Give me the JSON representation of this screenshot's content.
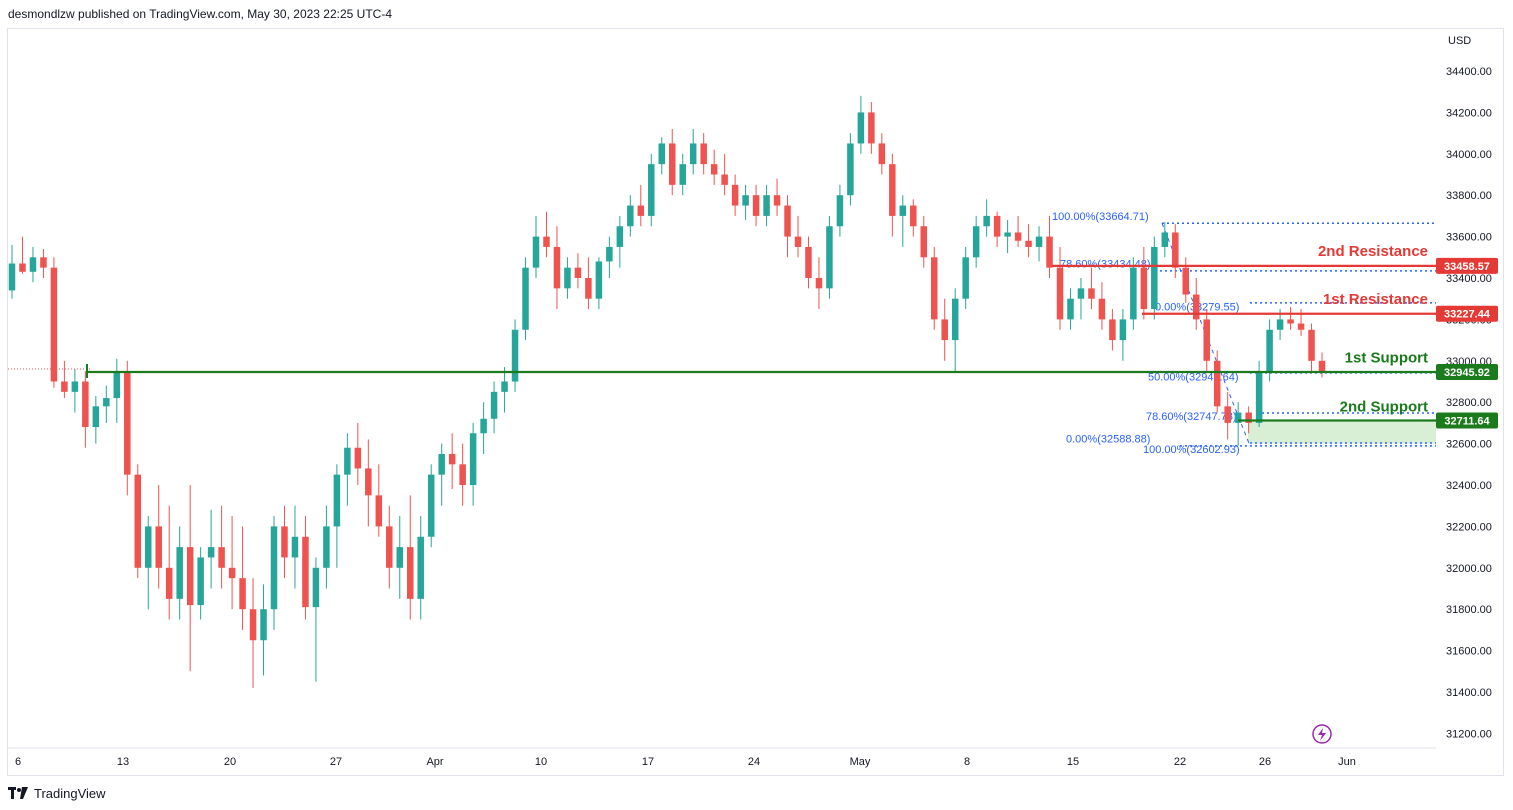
{
  "header": {
    "text": "desmondlzw published on TradingView.com, May 30, 2023 22:25 UTC-4"
  },
  "footer": {
    "brand": "TradingView",
    "logo_icon": "tradingview-logo-icon"
  },
  "chart_data": {
    "type": "candlestick",
    "currency": "USD",
    "colors": {
      "up": "#26a69a",
      "down": "#ef5350",
      "support": "#1b7a1b",
      "resistance": "#e53935",
      "fib": "#2962ff",
      "zone": "#d8efd6"
    },
    "y_ticks": [
      "34400.00",
      "34200.00",
      "34000.00",
      "33800.00",
      "33600.00",
      "33400.00",
      "33200.00",
      "33000.00",
      "32800.00",
      "32600.00",
      "32400.00",
      "32200.00",
      "32000.00",
      "31800.00",
      "31600.00",
      "31400.00",
      "31200.00"
    ],
    "x_ticks": [
      "6",
      "13",
      "20",
      "27",
      "Apr",
      "10",
      "17",
      "24",
      "May",
      "8",
      "15",
      "22",
      "26",
      "Jun"
    ],
    "levels": [
      {
        "label": "2nd Resistance",
        "value": 33458.57,
        "badge": "33458.57",
        "kind": "resistance"
      },
      {
        "label": "1st Resistance",
        "value": 33227.44,
        "badge": "33227.44",
        "kind": "resistance"
      },
      {
        "label": "1st Support",
        "value": 32945.92,
        "badge": "32945.92",
        "kind": "support"
      },
      {
        "label": "2nd Support",
        "value": 32711.64,
        "badge": "32711.64",
        "kind": "support"
      }
    ],
    "fib_labels": [
      "100.00%(33664.71)",
      "78.60%(33434.48)",
      "0.00%(33279.55)",
      "50.00%(32941.64)",
      "78.60%(32747.73)",
      "0.00%(32588.88)",
      "100.00%(32602.93)"
    ],
    "ohlc": [
      [
        33340,
        33560,
        33300,
        33470
      ],
      [
        33470,
        33600,
        33420,
        33430
      ],
      [
        33430,
        33550,
        33380,
        33500
      ],
      [
        33500,
        33540,
        33400,
        33450
      ],
      [
        33450,
        33500,
        32870,
        32900
      ],
      [
        32900,
        33000,
        32820,
        32850
      ],
      [
        32850,
        32960,
        32750,
        32900
      ],
      [
        32900,
        32950,
        32580,
        32680
      ],
      [
        32680,
        32830,
        32600,
        32780
      ],
      [
        32780,
        32880,
        32700,
        32820
      ],
      [
        32820,
        33010,
        32700,
        32950
      ],
      [
        32950,
        33000,
        32350,
        32450
      ],
      [
        32450,
        32500,
        31950,
        32000
      ],
      [
        32000,
        32250,
        31800,
        32200
      ],
      [
        32200,
        32400,
        31900,
        32000
      ],
      [
        32000,
        32300,
        31750,
        31850
      ],
      [
        31850,
        32200,
        31750,
        32100
      ],
      [
        32100,
        32400,
        31500,
        31820
      ],
      [
        31820,
        32100,
        31750,
        32050
      ],
      [
        32050,
        32280,
        31900,
        32100
      ],
      [
        32100,
        32300,
        31900,
        32000
      ],
      [
        32000,
        32250,
        31800,
        31950
      ],
      [
        31950,
        32200,
        31700,
        31800
      ],
      [
        31800,
        31950,
        31420,
        31650
      ],
      [
        31650,
        31920,
        31480,
        31800
      ],
      [
        31800,
        32250,
        31700,
        32200
      ],
      [
        32200,
        32300,
        31950,
        32050
      ],
      [
        32050,
        32300,
        31900,
        32150
      ],
      [
        32150,
        32250,
        31750,
        31810
      ],
      [
        31810,
        32050,
        31450,
        32000
      ],
      [
        32000,
        32300,
        31900,
        32200
      ],
      [
        32200,
        32500,
        32000,
        32450
      ],
      [
        32450,
        32650,
        32300,
        32580
      ],
      [
        32580,
        32700,
        32400,
        32480
      ],
      [
        32480,
        32620,
        32200,
        32350
      ],
      [
        32350,
        32500,
        32150,
        32200
      ],
      [
        32200,
        32300,
        31900,
        32000
      ],
      [
        32000,
        32250,
        31850,
        32100
      ],
      [
        32100,
        32350,
        31750,
        31850
      ],
      [
        31850,
        32250,
        31750,
        32150
      ],
      [
        32150,
        32500,
        32100,
        32450
      ],
      [
        32450,
        32600,
        32300,
        32550
      ],
      [
        32550,
        32650,
        32380,
        32500
      ],
      [
        32500,
        32600,
        32300,
        32400
      ],
      [
        32400,
        32700,
        32300,
        32650
      ],
      [
        32650,
        32800,
        32550,
        32720
      ],
      [
        32720,
        32900,
        32650,
        32850
      ],
      [
        32850,
        32970,
        32750,
        32900
      ],
      [
        32900,
        33200,
        32850,
        33150
      ],
      [
        33150,
        33500,
        33100,
        33450
      ],
      [
        33450,
        33700,
        33400,
        33600
      ],
      [
        33600,
        33720,
        33500,
        33550
      ],
      [
        33550,
        33650,
        33250,
        33350
      ],
      [
        33350,
        33500,
        33300,
        33450
      ],
      [
        33450,
        33520,
        33350,
        33400
      ],
      [
        33400,
        33500,
        33250,
        33300
      ],
      [
        33300,
        33500,
        33250,
        33480
      ],
      [
        33480,
        33600,
        33400,
        33550
      ],
      [
        33550,
        33700,
        33450,
        33650
      ],
      [
        33650,
        33800,
        33600,
        33750
      ],
      [
        33750,
        33850,
        33650,
        33700
      ],
      [
        33700,
        34000,
        33650,
        33950
      ],
      [
        33950,
        34080,
        33900,
        34050
      ],
      [
        34050,
        34120,
        33800,
        33850
      ],
      [
        33850,
        34000,
        33800,
        33950
      ],
      [
        33950,
        34120,
        33900,
        34050
      ],
      [
        34050,
        34100,
        33900,
        33950
      ],
      [
        33950,
        34020,
        33850,
        33900
      ],
      [
        33900,
        34000,
        33800,
        33850
      ],
      [
        33850,
        33900,
        33700,
        33750
      ],
      [
        33750,
        33850,
        33680,
        33800
      ],
      [
        33800,
        33850,
        33650,
        33700
      ],
      [
        33700,
        33850,
        33650,
        33800
      ],
      [
        33800,
        33880,
        33700,
        33750
      ],
      [
        33750,
        33800,
        33500,
        33600
      ],
      [
        33600,
        33700,
        33500,
        33550
      ],
      [
        33550,
        33600,
        33350,
        33400
      ],
      [
        33400,
        33500,
        33250,
        33350
      ],
      [
        33350,
        33700,
        33300,
        33650
      ],
      [
        33650,
        33850,
        33600,
        33800
      ],
      [
        33800,
        34100,
        33750,
        34050
      ],
      [
        34050,
        34280,
        34000,
        34200
      ],
      [
        34200,
        34250,
        34000,
        34050
      ],
      [
        34050,
        34100,
        33900,
        33950
      ],
      [
        33950,
        34000,
        33600,
        33700
      ],
      [
        33700,
        33800,
        33550,
        33750
      ],
      [
        33750,
        33780,
        33600,
        33650
      ],
      [
        33650,
        33700,
        33450,
        33500
      ],
      [
        33500,
        33550,
        33150,
        33200
      ],
      [
        33200,
        33300,
        33000,
        33100
      ],
      [
        33100,
        33350,
        32950,
        33300
      ],
      [
        33300,
        33550,
        33250,
        33500
      ],
      [
        33500,
        33700,
        33450,
        33650
      ],
      [
        33650,
        33780,
        33600,
        33700
      ],
      [
        33700,
        33720,
        33550,
        33600
      ],
      [
        33600,
        33680,
        33520,
        33620
      ],
      [
        33620,
        33700,
        33550,
        33580
      ],
      [
        33580,
        33660,
        33500,
        33550
      ],
      [
        33550,
        33650,
        33480,
        33600
      ],
      [
        33600,
        33700,
        33400,
        33450
      ],
      [
        33450,
        33550,
        33150,
        33200
      ],
      [
        33200,
        33350,
        33150,
        33300
      ],
      [
        33300,
        33400,
        33200,
        33350
      ],
      [
        33350,
        33450,
        33250,
        33300
      ],
      [
        33300,
        33380,
        33150,
        33200
      ],
      [
        33200,
        33250,
        33050,
        33100
      ],
      [
        33100,
        33250,
        33000,
        33200
      ],
      [
        33200,
        33500,
        33150,
        33450
      ],
      [
        33450,
        33550,
        33200,
        33250
      ],
      [
        33250,
        33600,
        33200,
        33550
      ],
      [
        33550,
        33670,
        33500,
        33620
      ],
      [
        33620,
        33660,
        33400,
        33450
      ],
      [
        33450,
        33500,
        33280,
        33320
      ],
      [
        33320,
        33400,
        33150,
        33200
      ],
      [
        33200,
        33250,
        32950,
        33000
      ],
      [
        33000,
        33050,
        32750,
        32780
      ],
      [
        32780,
        32850,
        32620,
        32700
      ],
      [
        32700,
        32800,
        32590,
        32750
      ],
      [
        32750,
        32780,
        32650,
        32700
      ],
      [
        32700,
        33000,
        32680,
        32950
      ],
      [
        32950,
        33200,
        32900,
        33150
      ],
      [
        33150,
        33250,
        33100,
        33200
      ],
      [
        33200,
        33260,
        33150,
        33180
      ],
      [
        33180,
        33250,
        33120,
        33150
      ],
      [
        33150,
        33180,
        32950,
        33000
      ],
      [
        33000,
        33040,
        32920,
        32945
      ]
    ]
  }
}
